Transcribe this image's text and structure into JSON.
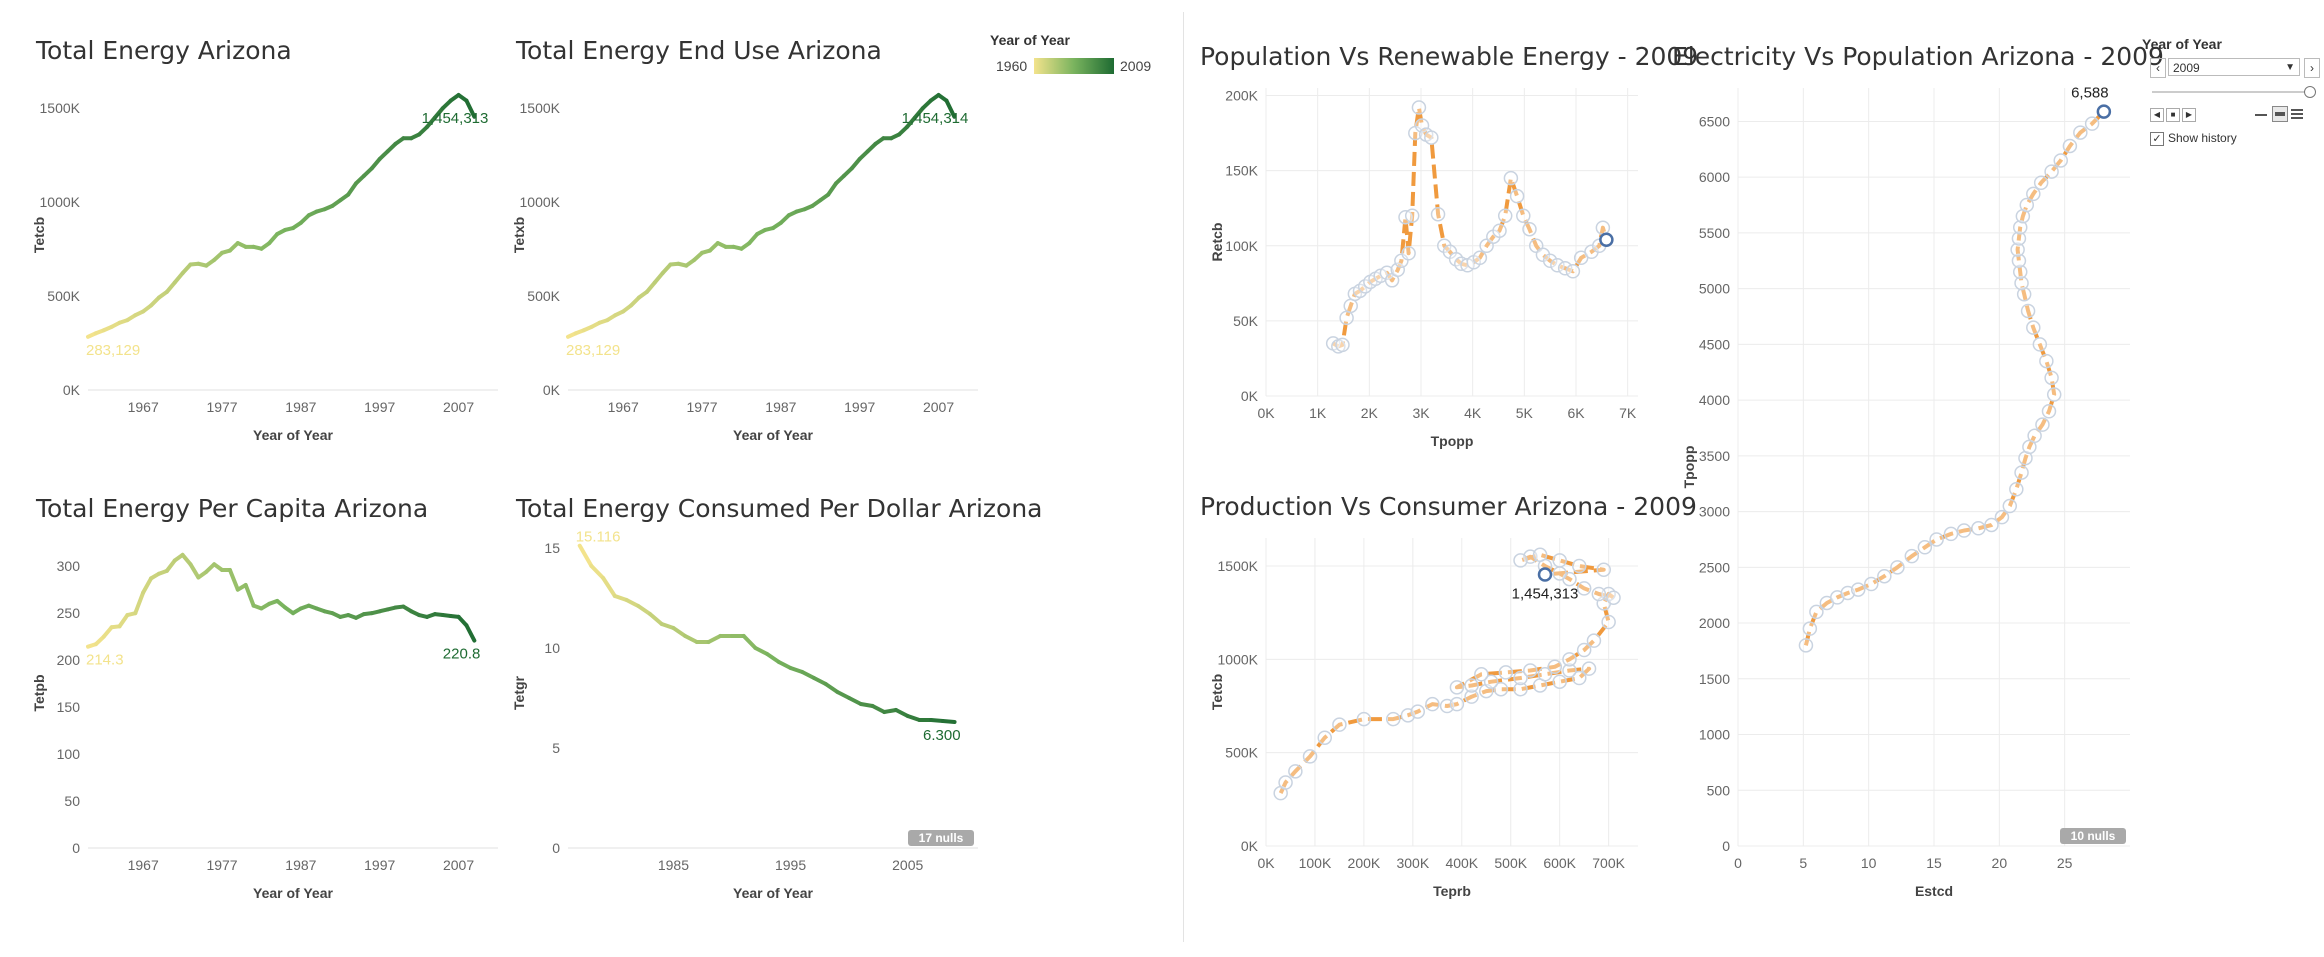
{
  "legend": {
    "title": "Year of Year",
    "min_label": "1960",
    "max_label": "2009",
    "color_low": "#f3e38c",
    "color_high": "#1e6b32"
  },
  "controls": {
    "title": "Year of Year",
    "selected_year": "2009",
    "show_history_label": "Show history",
    "show_history_checked": true
  },
  "colors": {
    "scatter_line": "#f09a3e",
    "point_stroke": "#c9d3e0",
    "highlight": "#4a6fa5"
  },
  "chart_data": [
    {
      "id": "total-energy",
      "type": "line",
      "title": "Total Energy Arizona",
      "xlabel": "Year of Year",
      "ylabel": "Tetcb",
      "xlim": [
        1960,
        2012
      ],
      "ylim": [
        0,
        1650000
      ],
      "xticks": [
        1967,
        1977,
        1987,
        1997,
        2007
      ],
      "yticks": [
        0,
        500000,
        1000000,
        1500000
      ],
      "ytick_labels": [
        "0K",
        "500K",
        "1000K",
        "1500K"
      ],
      "x": [
        1960,
        1961,
        1962,
        1963,
        1964,
        1965,
        1966,
        1967,
        1968,
        1969,
        1970,
        1971,
        1972,
        1973,
        1974,
        1975,
        1976,
        1977,
        1978,
        1979,
        1980,
        1981,
        1982,
        1983,
        1984,
        1985,
        1986,
        1987,
        1988,
        1989,
        1990,
        1991,
        1992,
        1993,
        1994,
        1995,
        1996,
        1997,
        1998,
        1999,
        2000,
        2001,
        2002,
        2003,
        2004,
        2005,
        2006,
        2007,
        2008,
        2009
      ],
      "y": [
        283129,
        302000,
        318000,
        336000,
        358000,
        372000,
        398000,
        418000,
        450000,
        492000,
        522000,
        572000,
        622000,
        668000,
        672000,
        662000,
        692000,
        730000,
        742000,
        782000,
        762000,
        762000,
        752000,
        782000,
        830000,
        852000,
        862000,
        890000,
        930000,
        950000,
        962000,
        980000,
        1010000,
        1040000,
        1100000,
        1140000,
        1180000,
        1230000,
        1270000,
        1310000,
        1340000,
        1340000,
        1360000,
        1400000,
        1450000,
        1500000,
        1540000,
        1570000,
        1540000,
        1454313
      ],
      "start_label": "283,129",
      "end_label": "1,454,313"
    },
    {
      "id": "end-use",
      "type": "line",
      "title": "Total Energy End Use Arizona",
      "xlabel": "Year of Year",
      "ylabel": "Tetxb",
      "xlim": [
        1960,
        2012
      ],
      "ylim": [
        0,
        1650000
      ],
      "xticks": [
        1967,
        1977,
        1987,
        1997,
        2007
      ],
      "yticks": [
        0,
        500000,
        1000000,
        1500000
      ],
      "ytick_labels": [
        "0K",
        "500K",
        "1000K",
        "1500K"
      ],
      "x": [
        1960,
        1961,
        1962,
        1963,
        1964,
        1965,
        1966,
        1967,
        1968,
        1969,
        1970,
        1971,
        1972,
        1973,
        1974,
        1975,
        1976,
        1977,
        1978,
        1979,
        1980,
        1981,
        1982,
        1983,
        1984,
        1985,
        1986,
        1987,
        1988,
        1989,
        1990,
        1991,
        1992,
        1993,
        1994,
        1995,
        1996,
        1997,
        1998,
        1999,
        2000,
        2001,
        2002,
        2003,
        2004,
        2005,
        2006,
        2007,
        2008,
        2009
      ],
      "y": [
        283129,
        302000,
        318000,
        336000,
        358000,
        372000,
        398000,
        418000,
        450000,
        492000,
        522000,
        572000,
        622000,
        668000,
        672000,
        662000,
        692000,
        730000,
        742000,
        782000,
        762000,
        762000,
        752000,
        782000,
        830000,
        852000,
        862000,
        890000,
        930000,
        950000,
        962000,
        980000,
        1010000,
        1040000,
        1100000,
        1140000,
        1180000,
        1230000,
        1270000,
        1310000,
        1340000,
        1340000,
        1360000,
        1400000,
        1450000,
        1500000,
        1540000,
        1570000,
        1540000,
        1454314
      ],
      "start_label": "283,129",
      "end_label": "1,454,314"
    },
    {
      "id": "per-capita",
      "type": "line",
      "title": "Total Energy Per Capita Arizona",
      "xlabel": "Year of Year",
      "ylabel": "Tetpb",
      "xlim": [
        1960,
        2012
      ],
      "ylim": [
        0,
        330
      ],
      "xticks": [
        1967,
        1977,
        1987,
        1997,
        2007
      ],
      "yticks": [
        0,
        50,
        100,
        150,
        200,
        250,
        300
      ],
      "ytick_labels": [
        "0",
        "50",
        "100",
        "150",
        "200",
        "250",
        "300"
      ],
      "x": [
        1960,
        1961,
        1962,
        1963,
        1964,
        1965,
        1966,
        1967,
        1968,
        1969,
        1970,
        1971,
        1972,
        1973,
        1974,
        1975,
        1976,
        1977,
        1978,
        1979,
        1980,
        1981,
        1982,
        1983,
        1984,
        1985,
        1986,
        1987,
        1988,
        1989,
        1990,
        1991,
        1992,
        1993,
        1994,
        1995,
        1996,
        1997,
        1998,
        1999,
        2000,
        2001,
        2002,
        2003,
        2004,
        2005,
        2006,
        2007,
        2008,
        2009
      ],
      "y": [
        214.3,
        217,
        225,
        235,
        236,
        248,
        250,
        272,
        287,
        292,
        295,
        306,
        312,
        302,
        288,
        294,
        302,
        296,
        296,
        275,
        280,
        258,
        255,
        260,
        263,
        256,
        250,
        255,
        258,
        255,
        252,
        250,
        246,
        248,
        245,
        249,
        250,
        252,
        254,
        256,
        257,
        252,
        248,
        246,
        249,
        248,
        247,
        246,
        237,
        220.8
      ],
      "start_label": "214.3",
      "end_label": "220.8"
    },
    {
      "id": "per-dollar",
      "type": "line",
      "title": "Total Energy Consumed Per Dollar Arizona",
      "xlabel": "Year of Year",
      "ylabel": "Tetgr",
      "xlim": [
        1976,
        2011
      ],
      "ylim": [
        0,
        15.5
      ],
      "xticks": [
        1985,
        1995,
        2005
      ],
      "yticks": [
        0,
        5,
        10,
        15
      ],
      "ytick_labels": [
        "0",
        "5",
        "10",
        "15"
      ],
      "x": [
        1977,
        1978,
        1979,
        1980,
        1981,
        1982,
        1983,
        1984,
        1985,
        1986,
        1987,
        1988,
        1989,
        1990,
        1991,
        1992,
        1993,
        1994,
        1995,
        1996,
        1997,
        1998,
        1999,
        2000,
        2001,
        2002,
        2003,
        2004,
        2005,
        2006,
        2007,
        2008,
        2009
      ],
      "y": [
        15.116,
        14.1,
        13.5,
        12.6,
        12.4,
        12.1,
        11.7,
        11.2,
        11.0,
        10.6,
        10.3,
        10.3,
        10.6,
        10.6,
        10.6,
        10.0,
        9.7,
        9.3,
        9.0,
        8.8,
        8.5,
        8.2,
        7.8,
        7.5,
        7.2,
        7.1,
        6.8,
        6.9,
        6.6,
        6.4,
        6.4,
        6.35,
        6.3
      ],
      "start_label": "15.116",
      "end_label": "6.300",
      "null_badge": "17 nulls"
    },
    {
      "id": "pop-renew",
      "type": "scatter",
      "title": "Population Vs Renewable Energy - 2009",
      "xlabel": "Tpopp",
      "ylabel": "Retcb",
      "xlim": [
        0,
        7200
      ],
      "ylim": [
        0,
        205000
      ],
      "xticks": [
        0,
        1000,
        2000,
        3000,
        4000,
        5000,
        6000,
        7000
      ],
      "xtick_labels": [
        "0K",
        "1K",
        "2K",
        "3K",
        "4K",
        "5K",
        "6K",
        "7K"
      ],
      "yticks": [
        0,
        50000,
        100000,
        150000,
        200000
      ],
      "ytick_labels": [
        "0K",
        "50K",
        "100K",
        "150K",
        "200K"
      ],
      "x": [
        1300,
        1400,
        1480,
        1560,
        1640,
        1720,
        1820,
        1920,
        2020,
        2120,
        2220,
        2340,
        2440,
        2550,
        2620,
        2700,
        2760,
        2830,
        2890,
        2960,
        3020,
        3100,
        3200,
        3330,
        3450,
        3560,
        3680,
        3780,
        3900,
        4020,
        4140,
        4270,
        4400,
        4520,
        4630,
        4740,
        4860,
        4980,
        5100,
        5230,
        5360,
        5500,
        5640,
        5790,
        5940,
        6100,
        6300,
        6450,
        6520,
        6588
      ],
      "y": [
        35000,
        33000,
        34000,
        52000,
        60000,
        68000,
        70000,
        73000,
        76000,
        78000,
        80000,
        82000,
        77000,
        84000,
        90000,
        119000,
        95000,
        120000,
        175000,
        192000,
        180000,
        174000,
        172000,
        121000,
        100000,
        96000,
        91000,
        88000,
        87000,
        89000,
        92000,
        100000,
        106000,
        110000,
        120000,
        145000,
        133000,
        120000,
        111000,
        100000,
        94000,
        90000,
        87000,
        85000,
        83000,
        92000,
        96000,
        100000,
        112000,
        104000
      ],
      "end_label": ""
    },
    {
      "id": "elec-pop",
      "type": "scatter",
      "title": "Electricity Vs Population Arizona - 2009",
      "xlabel": "Estcd",
      "ylabel": "Tpopp",
      "xlim": [
        0,
        30
      ],
      "ylim": [
        0,
        6800
      ],
      "xticks": [
        0,
        5,
        10,
        15,
        20,
        25
      ],
      "xtick_labels": [
        "0",
        "5",
        "10",
        "15",
        "20",
        "25"
      ],
      "yticks": [
        0,
        500,
        1000,
        1500,
        2000,
        2500,
        3000,
        3500,
        4000,
        4500,
        5000,
        5500,
        6000,
        6500
      ],
      "ytick_labels": [
        "0",
        "500",
        "1000",
        "1500",
        "2000",
        "2500",
        "3000",
        "3500",
        "4000",
        "4500",
        "5000",
        "5500",
        "6000",
        "6500"
      ],
      "x": [
        5.2,
        5.5,
        6.0,
        6.8,
        7.6,
        8.4,
        9.2,
        10.2,
        11.2,
        12.2,
        13.3,
        14.3,
        15.2,
        16.3,
        17.3,
        18.4,
        19.4,
        20.2,
        20.8,
        21.3,
        21.7,
        22.0,
        22.3,
        22.7,
        23.3,
        23.8,
        24.2,
        24.0,
        23.6,
        23.1,
        22.6,
        22.2,
        21.9,
        21.7,
        21.6,
        21.5,
        21.4,
        21.5,
        21.6,
        21.8,
        22.1,
        22.6,
        23.2,
        24.0,
        24.7,
        25.4,
        26.2,
        27.1,
        28.0
      ],
      "y": [
        1800,
        1950,
        2100,
        2180,
        2230,
        2270,
        2300,
        2350,
        2420,
        2500,
        2600,
        2680,
        2750,
        2800,
        2830,
        2850,
        2880,
        2950,
        3050,
        3200,
        3350,
        3480,
        3580,
        3680,
        3780,
        3900,
        4050,
        4200,
        4350,
        4500,
        4650,
        4800,
        4950,
        5050,
        5150,
        5250,
        5350,
        5450,
        5550,
        5650,
        5750,
        5850,
        5950,
        6050,
        6150,
        6280,
        6400,
        6480,
        6588
      ],
      "end_label": "6,588",
      "null_badge": "10 nulls"
    },
    {
      "id": "prod-cons",
      "type": "scatter",
      "title": "Production Vs Consumer Arizona - 2009",
      "xlabel": "Teprb",
      "ylabel": "Tetcb",
      "xlim": [
        0,
        760000
      ],
      "ylim": [
        0,
        1650000
      ],
      "xticks": [
        0,
        100000,
        200000,
        300000,
        400000,
        500000,
        600000,
        700000
      ],
      "xtick_labels": [
        "0K",
        "100K",
        "200K",
        "300K",
        "400K",
        "500K",
        "600K",
        "700K"
      ],
      "yticks": [
        0,
        500000,
        1000000,
        1500000
      ],
      "ytick_labels": [
        "0K",
        "500K",
        "1000K",
        "1500K"
      ],
      "x": [
        30000,
        40000,
        60000,
        90000,
        120000,
        150000,
        200000,
        260000,
        290000,
        310000,
        340000,
        370000,
        390000,
        420000,
        450000,
        480000,
        520000,
        560000,
        600000,
        640000,
        660000,
        620000,
        570000,
        520000,
        460000,
        420000,
        390000,
        440000,
        490000,
        540000,
        590000,
        620000,
        650000,
        670000,
        700000,
        690000,
        700000,
        710000,
        680000,
        650000,
        620000,
        600000,
        570000,
        540000,
        520000,
        560000,
        600000,
        640000,
        690000,
        570000
      ],
      "y": [
        283129,
        340000,
        400000,
        480000,
        580000,
        650000,
        680000,
        680000,
        700000,
        720000,
        760000,
        750000,
        760000,
        800000,
        830000,
        840000,
        840000,
        860000,
        880000,
        900000,
        950000,
        940000,
        920000,
        900000,
        880000,
        860000,
        850000,
        920000,
        930000,
        940000,
        960000,
        1000000,
        1050000,
        1100000,
        1200000,
        1300000,
        1350000,
        1330000,
        1350000,
        1380000,
        1430000,
        1460000,
        1500000,
        1550000,
        1530000,
        1560000,
        1530000,
        1500000,
        1480000,
        1454313
      ],
      "end_label": "1,454,313"
    }
  ]
}
